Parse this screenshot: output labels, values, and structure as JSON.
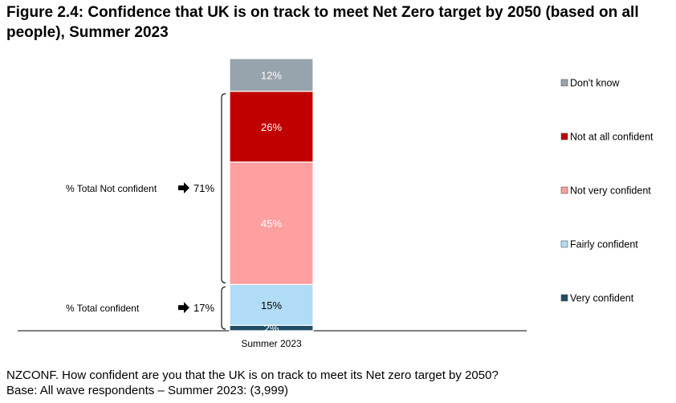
{
  "title": "Figure 2.4: Confidence that UK is on track to meet Net Zero target by 2050 (based on all people), Summer 2023",
  "footer": {
    "question": "NZCONF. How confident are you that the UK is on track to meet its Net zero target by 2050?",
    "base": "Base: All wave respondents – Summer 2023: (3,999)"
  },
  "chart_data": {
    "type": "bar",
    "stacked": true,
    "categories": [
      "Summer 2023"
    ],
    "series": [
      {
        "name": "Very confident",
        "values": [
          2
        ],
        "label": "2%",
        "color": "#1f4e66",
        "label_color": "#ffffff"
      },
      {
        "name": "Fairly confident",
        "values": [
          15
        ],
        "label": "15%",
        "color": "#b0dcf5",
        "label_color": "#000000"
      },
      {
        "name": "Not very confident",
        "values": [
          45
        ],
        "label": "45%",
        "color": "#ff9f9f",
        "label_color": "#ffffff"
      },
      {
        "name": "Not at all confident",
        "values": [
          26
        ],
        "label": "26%",
        "color": "#c00000",
        "label_color": "#ffffff"
      },
      {
        "name": "Don't know",
        "values": [
          12
        ],
        "label": "12%",
        "color": "#97a3ad",
        "label_color": "#ffffff"
      }
    ],
    "legend": {
      "placement": "right",
      "order": [
        "Don't know",
        "Not at all confident",
        "Not very confident",
        "Fairly confident",
        "Very confident"
      ]
    },
    "annotations": [
      {
        "label": "% Total Not confident",
        "value": "71%",
        "spans": [
          "Not very confident",
          "Not at all confident"
        ]
      },
      {
        "label": "% Total confident",
        "value": "17%",
        "spans": [
          "Very confident",
          "Fairly confident"
        ]
      }
    ],
    "ylim": [
      0,
      100
    ],
    "grid": false,
    "xlabel": "",
    "ylabel": ""
  }
}
